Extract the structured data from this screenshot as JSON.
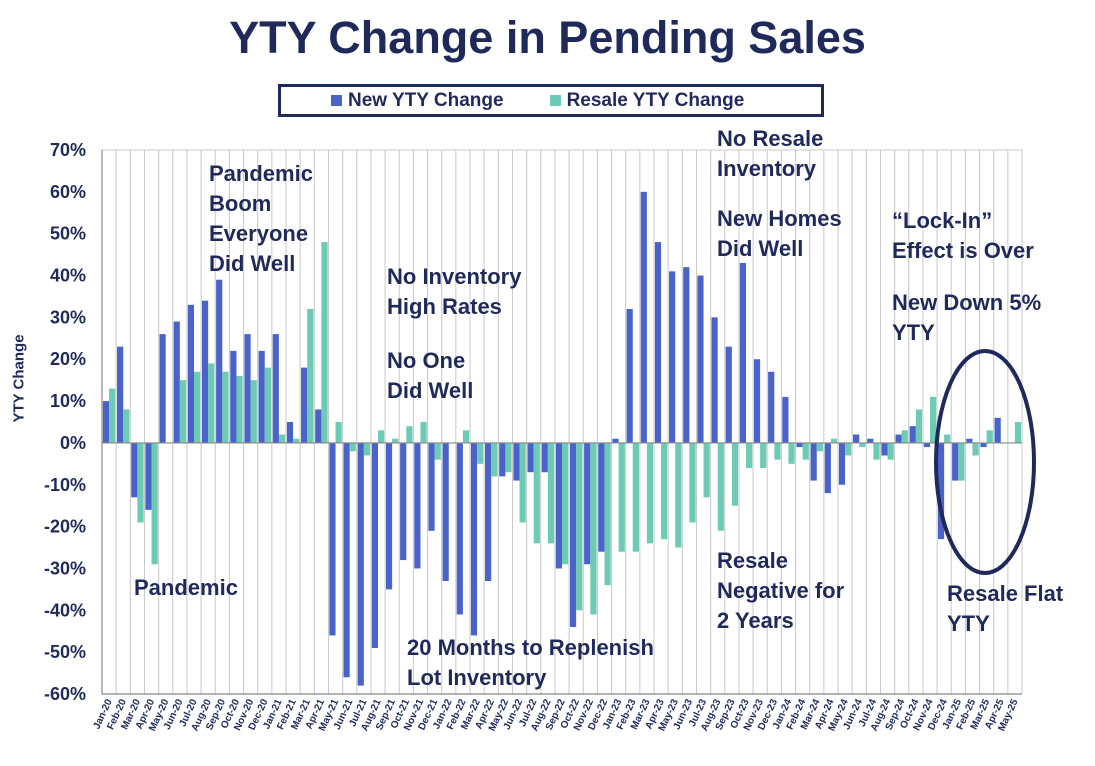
{
  "chart_data": {
    "type": "bar",
    "title": "YTY Change in Pending Sales",
    "ylabel": "YTY Change",
    "xlabel": "",
    "ylim": [
      -60,
      70
    ],
    "yticks": [
      "70%",
      "60%",
      "50%",
      "40%",
      "30%",
      "20%",
      "10%",
      "0%",
      "-10%",
      "-20%",
      "-30%",
      "-40%",
      "-50%",
      "-60%"
    ],
    "grid": "vertical",
    "legend_position": "top-center",
    "categories": [
      "Jan-20",
      "Feb-20",
      "Mar-20",
      "Apr-20",
      "May-20",
      "Jun-20",
      "Jul-20",
      "Aug-20",
      "Sep-20",
      "Oct-20",
      "Nov-20",
      "Dec-20",
      "Jan-21",
      "Feb-21",
      "Mar-21",
      "Apr-21",
      "May-21",
      "Jun-21",
      "Jul-21",
      "Aug-21",
      "Sep-21",
      "Oct-21",
      "Nov-21",
      "Dec-21",
      "Jan-22",
      "Feb-22",
      "Mar-22",
      "Apr-22",
      "May-22",
      "Jun-22",
      "Jul-22",
      "Aug-22",
      "Sep-22",
      "Oct-22",
      "Nov-22",
      "Dec-22",
      "Jan-23",
      "Feb-23",
      "Mar-23",
      "Apr-23",
      "May-23",
      "Jun-23",
      "Jul-23",
      "Aug-23",
      "Sep-23",
      "Oct-23",
      "Nov-23",
      "Dec-23",
      "Jan-24",
      "Feb-24",
      "Mar-24",
      "Apr-24",
      "May-24",
      "Jun-24",
      "Jul-24",
      "Aug-24",
      "Sep-24",
      "Oct-24",
      "Nov-24",
      "Dec-24",
      "Jan-25",
      "Feb-25",
      "Mar-25",
      "Apr-25",
      "May-25"
    ],
    "series": [
      {
        "name": "New YTY Change",
        "color": "#4a63c9",
        "values": [
          10,
          23,
          -13,
          -16,
          26,
          29,
          33,
          34,
          39,
          22,
          26,
          22,
          26,
          5,
          18,
          8,
          -46,
          -56,
          -58,
          -49,
          -35,
          -28,
          -30,
          -21,
          -33,
          -41,
          -46,
          -33,
          -8,
          -9,
          -7,
          -7,
          -30,
          -44,
          -29,
          -26,
          1,
          32,
          60,
          48,
          41,
          42,
          40,
          30,
          23,
          43,
          20,
          17,
          11,
          -1,
          -9,
          -12,
          -10,
          2,
          1,
          -3,
          2,
          4,
          -1,
          -23,
          -9,
          1,
          -1,
          6,
          0
        ]
      },
      {
        "name": "Resale YTY Change",
        "color": "#6ccab5",
        "values": [
          13,
          8,
          -19,
          -29,
          0,
          15,
          17,
          19,
          17,
          16,
          15,
          18,
          2,
          1,
          32,
          48,
          5,
          -2,
          -3,
          3,
          1,
          4,
          5,
          -4,
          0,
          3,
          -5,
          -8,
          -7,
          -19,
          -24,
          -24,
          -29,
          -40,
          -41,
          -34,
          -26,
          -26,
          -24,
          -23,
          -25,
          -19,
          -13,
          -21,
          -15,
          -6,
          -6,
          -4,
          -5,
          -4,
          -2,
          1,
          -3,
          -1,
          -4,
          -4,
          3,
          8,
          11,
          2,
          -9,
          -3,
          3,
          0,
          5
        ]
      }
    ],
    "annotations": [
      {
        "id": "pandemic-boom",
        "lines": [
          "Pandemic",
          "Boom",
          "Everyone",
          "Did Well"
        ]
      },
      {
        "id": "no-inventory",
        "lines": [
          "No Inventory",
          "High Rates"
        ]
      },
      {
        "id": "no-one",
        "lines": [
          "No One",
          "Did Well"
        ]
      },
      {
        "id": "no-resale",
        "lines": [
          "No Resale",
          "Inventory"
        ]
      },
      {
        "id": "new-homes",
        "lines": [
          "New Homes",
          "Did Well"
        ]
      },
      {
        "id": "lock-in",
        "lines": [
          "“Lock-In”",
          "Effect is Over"
        ]
      },
      {
        "id": "new-down",
        "lines": [
          "New Down 5%",
          "YTY"
        ]
      },
      {
        "id": "pandemic",
        "lines": [
          "Pandemic"
        ]
      },
      {
        "id": "replenish",
        "lines": [
          "20 Months to Replenish",
          "Lot Inventory"
        ]
      },
      {
        "id": "resale-negative",
        "lines": [
          "Resale",
          "Negative for",
          "2 Years"
        ]
      },
      {
        "id": "resale-flat",
        "lines": [
          "Resale Flat",
          "YTY"
        ]
      }
    ]
  }
}
